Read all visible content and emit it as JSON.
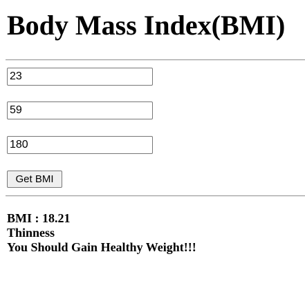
{
  "page": {
    "title": "Body Mass Index(BMI)"
  },
  "form": {
    "age_value": "23",
    "weight_value": "59",
    "height_value": "180",
    "submit_label": "Get BMI"
  },
  "result": {
    "bmi_line": "BMI : 18.21",
    "category": "Thinness",
    "advice": "You Should Gain Healthy Weight!!!"
  }
}
